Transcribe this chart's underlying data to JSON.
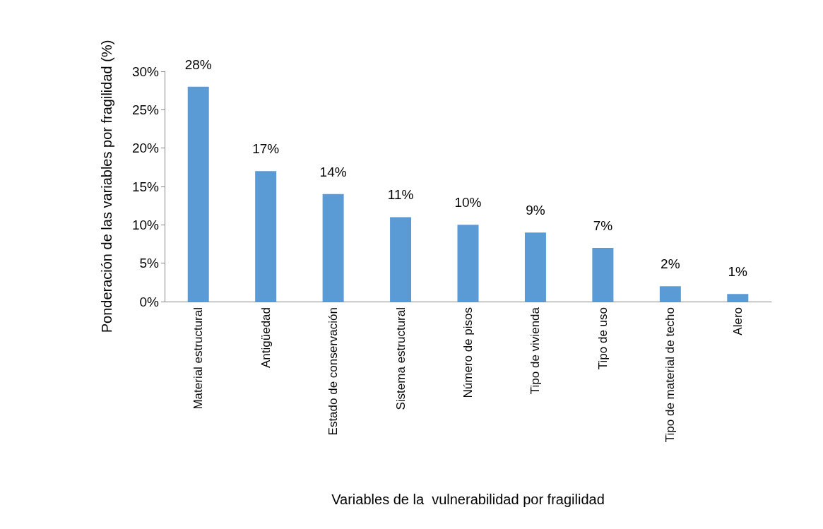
{
  "chart_data": {
    "type": "bar",
    "xlabel": "Variables de la  vulnerabilidad por fragilidad",
    "ylabel": "Ponderación de las variables por fragilidad (%)",
    "categories": [
      "Material estructural",
      "Antigüedad",
      "Estado de conservación",
      "Sistema estructural",
      "Número de pisos",
      "Tipo de vivienda",
      "Tipo de uso",
      "Tipo de material de techo",
      "Alero"
    ],
    "values": [
      28,
      17,
      14,
      11,
      10,
      9,
      7,
      2,
      1
    ],
    "value_labels": [
      "28%",
      "17%",
      "14%",
      "11%",
      "10%",
      "9%",
      "7%",
      "2%",
      "1%"
    ],
    "color": "#5b9bd5",
    "ylim": [
      0,
      30
    ],
    "yticks": [
      {
        "value": 0,
        "label": "0%"
      },
      {
        "value": 5,
        "label": "5%"
      },
      {
        "value": 10,
        "label": "10%"
      },
      {
        "value": 15,
        "label": "15%"
      },
      {
        "value": 20,
        "label": "20%"
      },
      {
        "value": 25,
        "label": "25%"
      },
      {
        "value": 30,
        "label": "30%"
      }
    ],
    "grid": false
  }
}
